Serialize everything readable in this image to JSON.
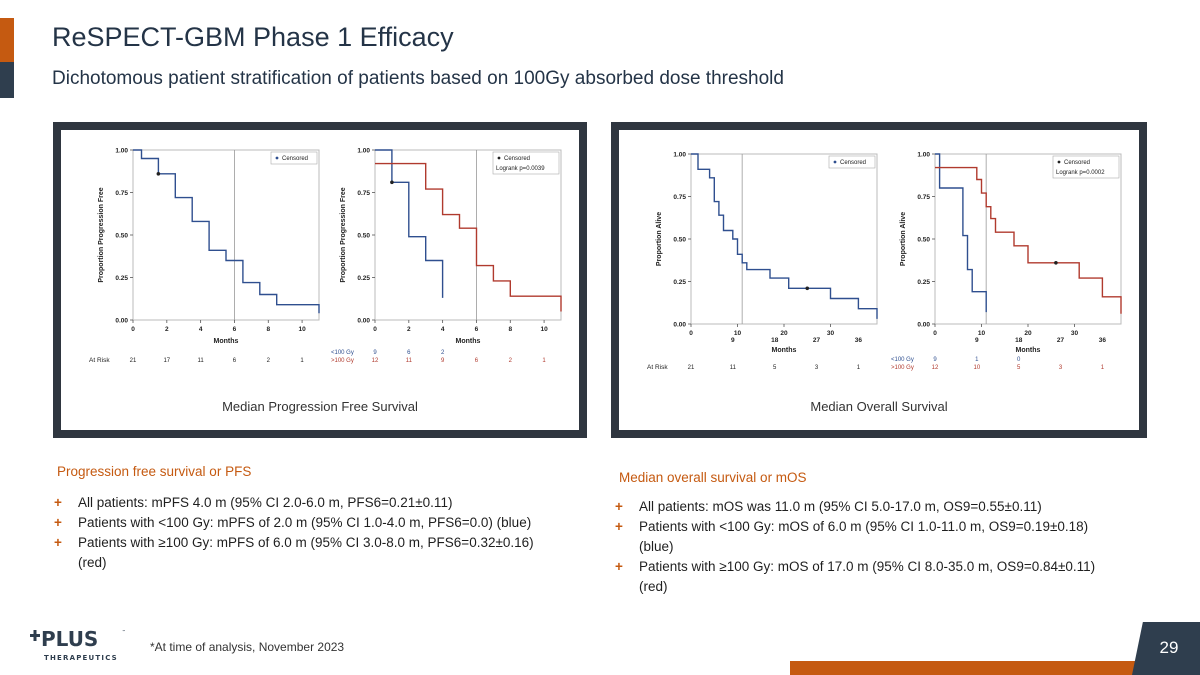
{
  "slide": {
    "title": "ReSPECT-GBM Phase 1 Efficacy",
    "subtitle": "Dichotomous patient stratification of patients based on 100Gy absorbed dose threshold",
    "footnote": "*At time of analysis, November 2023",
    "page_number": "29",
    "logo": {
      "text": "PLUS",
      "tagline": "THERAPEUTICS",
      "tm": "™"
    },
    "colors": {
      "accent": "#c55a11",
      "navy": "#2f3e4e",
      "blue_curve": "#2f4f8f",
      "red_curve": "#b03a2e"
    }
  },
  "pfs_section": {
    "heading": "Progression free survival or PFS",
    "bullets": [
      "All patients: mPFS 4.0 m (95% CI 2.0-6.0 m, PFS6=0.21±0.11)",
      "Patients with <100 Gy: mPFS of 2.0 m (95% CI 1.0-4.0 m, PFS6=0.0) (blue)",
      "Patients with ≥100 Gy: mPFS of 6.0 m (95% CI 3.0-8.0 m, PFS6=0.32±0.16)",
      "(red)"
    ]
  },
  "os_section": {
    "heading": "Median overall survival or mOS",
    "bullets": [
      "All patients: mOS was 11.0 m (95% CI 5.0-17.0 m, OS9=0.55±0.11)",
      "Patients with <100 Gy: mOS of 6.0 m (95% CI 1.0-11.0 m, OS9=0.19±0.18)",
      "(blue)",
      "Patients with ≥100 Gy: mOS of 17.0 m (95% CI 8.0-35.0 m, OS9=0.84±0.11)",
      "(red)"
    ]
  },
  "pfs_panel": {
    "caption": "Median Progression Free Survival"
  },
  "os_panel": {
    "caption": "Median Overall Survival"
  },
  "chart_data": [
    {
      "type": "line",
      "subtype": "kaplan-meier",
      "ylabel": "Proportion Progression Free",
      "xlabel": "Months",
      "xlim": [
        0,
        11
      ],
      "ylim": [
        0,
        1
      ],
      "xticks": [
        "0",
        "2",
        "4",
        "6",
        "8",
        "10"
      ],
      "xtick_values": [
        0,
        2,
        4,
        6,
        8,
        10
      ],
      "yticks": [
        "0.00",
        "0.25",
        "0.50",
        "0.75",
        "1.00"
      ],
      "legend": {
        "position": "top-right",
        "entries": [
          "Censored"
        ],
        "logrank": ""
      },
      "median_line_x": 6,
      "series": [
        {
          "color": "#2f4f8f",
          "points": [
            [
              0,
              1.0
            ],
            [
              0.5,
              1.0
            ],
            [
              0.5,
              0.95
            ],
            [
              1.5,
              0.95
            ],
            [
              1.5,
              0.86
            ],
            [
              2.5,
              0.86
            ],
            [
              2.5,
              0.72
            ],
            [
              3.5,
              0.72
            ],
            [
              3.5,
              0.58
            ],
            [
              4.5,
              0.58
            ],
            [
              4.5,
              0.41
            ],
            [
              5.5,
              0.41
            ],
            [
              5.5,
              0.35
            ],
            [
              6.5,
              0.35
            ],
            [
              6.5,
              0.22
            ],
            [
              7.5,
              0.22
            ],
            [
              7.5,
              0.15
            ],
            [
              8.5,
              0.15
            ],
            [
              8.5,
              0.09
            ],
            [
              11,
              0.09
            ],
            [
              11,
              0.04
            ]
          ],
          "censored": [
            [
              1.5,
              0.86
            ]
          ]
        }
      ],
      "at_risk": {
        "label": "At Risk",
        "rows": [
          {
            "values": [
              "21",
              "17",
              "11",
              "6",
              "2",
              "1"
            ]
          }
        ]
      }
    },
    {
      "type": "line",
      "subtype": "kaplan-meier",
      "ylabel": "Proportion Progression Free",
      "xlabel": "Months",
      "xlim": [
        0,
        11
      ],
      "ylim": [
        0,
        1
      ],
      "xticks": [
        "0",
        "2",
        "4",
        "6",
        "8",
        "10"
      ],
      "xtick_values": [
        0,
        2,
        4,
        6,
        8,
        10
      ],
      "yticks": [
        "0.00",
        "0.25",
        "0.50",
        "0.75",
        "1.00"
      ],
      "legend": {
        "position": "top-right",
        "entries": [
          "Censored"
        ],
        "logrank": "Logrank p=0.0039"
      },
      "median_line_x": 6,
      "series": [
        {
          "color": "#2f4f8f",
          "points": [
            [
              0,
              1.0
            ],
            [
              1,
              1.0
            ],
            [
              1,
              0.81
            ],
            [
              2,
              0.81
            ],
            [
              2,
              0.49
            ],
            [
              3,
              0.49
            ],
            [
              3,
              0.35
            ],
            [
              4,
              0.35
            ],
            [
              4,
              0.13
            ]
          ],
          "censored": [
            [
              1,
              0.81
            ]
          ]
        },
        {
          "color": "#b03a2e",
          "points": [
            [
              0,
              0.92
            ],
            [
              3,
              0.92
            ],
            [
              3,
              0.77
            ],
            [
              4,
              0.77
            ],
            [
              4,
              0.62
            ],
            [
              5,
              0.62
            ],
            [
              5,
              0.54
            ],
            [
              6,
              0.54
            ],
            [
              6,
              0.32
            ],
            [
              7,
              0.32
            ],
            [
              7,
              0.23
            ],
            [
              8,
              0.23
            ],
            [
              8,
              0.14
            ],
            [
              11,
              0.14
            ],
            [
              11,
              0.05
            ]
          ],
          "censored": []
        }
      ],
      "at_risk": {
        "label": "",
        "rows": [
          {
            "label": "<100 Gy",
            "values": [
              "9",
              "6",
              "2",
              "",
              "",
              ""
            ],
            "color": "#2f4f8f"
          },
          {
            "label": ">100 Gy",
            "values": [
              "12",
              "11",
              "9",
              "6",
              "2",
              "1"
            ],
            "color": "#b03a2e"
          }
        ]
      }
    },
    {
      "type": "line",
      "subtype": "kaplan-meier",
      "ylabel": "Proportion Alive",
      "xlabel": "Months",
      "xlim": [
        0,
        40
      ],
      "ylim": [
        0,
        1
      ],
      "xticks": [
        "0",
        "10",
        "20",
        "30"
      ],
      "xtick_values": [
        0,
        10,
        20,
        30
      ],
      "xticks2": [
        "9",
        "18",
        "27",
        "36"
      ],
      "xtick2_values": [
        9,
        18,
        27,
        36
      ],
      "yticks": [
        "0.00",
        "0.25",
        "0.50",
        "0.75",
        "1.00"
      ],
      "legend": {
        "position": "top-right",
        "entries": [
          "Censored"
        ],
        "logrank": ""
      },
      "median_line_x": 11,
      "series": [
        {
          "color": "#2f4f8f",
          "points": [
            [
              0,
              1.0
            ],
            [
              1.5,
              1.0
            ],
            [
              1.5,
              0.91
            ],
            [
              4,
              0.91
            ],
            [
              4,
              0.86
            ],
            [
              5,
              0.86
            ],
            [
              5,
              0.72
            ],
            [
              6,
              0.72
            ],
            [
              6,
              0.64
            ],
            [
              7,
              0.64
            ],
            [
              7,
              0.55
            ],
            [
              9,
              0.55
            ],
            [
              9,
              0.5
            ],
            [
              10,
              0.5
            ],
            [
              10,
              0.41
            ],
            [
              11,
              0.41
            ],
            [
              11,
              0.36
            ],
            [
              12,
              0.36
            ],
            [
              12,
              0.32
            ],
            [
              17,
              0.32
            ],
            [
              17,
              0.27
            ],
            [
              21,
              0.27
            ],
            [
              21,
              0.21
            ],
            [
              30,
              0.21
            ],
            [
              30,
              0.15
            ],
            [
              36,
              0.15
            ],
            [
              36,
              0.09
            ],
            [
              40,
              0.09
            ],
            [
              40,
              0.03
            ]
          ],
          "censored": [
            [
              25,
              0.21
            ]
          ]
        }
      ],
      "at_risk": {
        "label": "At Risk",
        "rows": [
          {
            "values": [
              "21",
              "11",
              "5",
              "3",
              "1"
            ]
          }
        ],
        "positions": [
          0,
          9,
          18,
          27,
          36
        ]
      }
    },
    {
      "type": "line",
      "subtype": "kaplan-meier",
      "ylabel": "Proportion Alive",
      "xlabel": "Months",
      "xlim": [
        0,
        40
      ],
      "ylim": [
        0,
        1
      ],
      "xticks": [
        "0",
        "10",
        "20",
        "30"
      ],
      "xtick_values": [
        0,
        10,
        20,
        30
      ],
      "xticks2": [
        "9",
        "18",
        "27",
        "36"
      ],
      "xtick2_values": [
        9,
        18,
        27,
        36
      ],
      "yticks": [
        "0.00",
        "0.25",
        "0.50",
        "0.75",
        "1.00"
      ],
      "legend": {
        "position": "top-right",
        "entries": [
          "Censored"
        ],
        "logrank": "Logrank p=0.0002"
      },
      "median_line_x": 11,
      "series": [
        {
          "color": "#2f4f8f",
          "points": [
            [
              0,
              1.0
            ],
            [
              1,
              1.0
            ],
            [
              1,
              0.8
            ],
            [
              6,
              0.8
            ],
            [
              6,
              0.52
            ],
            [
              7,
              0.52
            ],
            [
              7,
              0.32
            ],
            [
              8,
              0.32
            ],
            [
              8,
              0.19
            ],
            [
              11,
              0.19
            ],
            [
              11,
              0.07
            ]
          ],
          "censored": []
        },
        {
          "color": "#b03a2e",
          "points": [
            [
              0,
              0.92
            ],
            [
              5,
              0.92
            ],
            [
              5,
              0.92
            ],
            [
              9,
              0.92
            ],
            [
              9,
              0.85
            ],
            [
              10,
              0.85
            ],
            [
              10,
              0.77
            ],
            [
              11,
              0.77
            ],
            [
              11,
              0.69
            ],
            [
              12,
              0.69
            ],
            [
              12,
              0.62
            ],
            [
              13,
              0.62
            ],
            [
              13,
              0.54
            ],
            [
              17,
              0.54
            ],
            [
              17,
              0.46
            ],
            [
              20,
              0.46
            ],
            [
              20,
              0.36
            ],
            [
              31,
              0.36
            ],
            [
              31,
              0.27
            ],
            [
              36,
              0.27
            ],
            [
              36,
              0.16
            ],
            [
              40,
              0.16
            ],
            [
              40,
              0.06
            ]
          ],
          "censored": [
            [
              26,
              0.36
            ]
          ]
        }
      ],
      "at_risk": {
        "label": "",
        "positions": [
          0,
          9,
          18,
          27,
          36
        ],
        "rows": [
          {
            "label": "<100 Gy",
            "values": [
              "9",
              "1",
              "0",
              "",
              ""
            ],
            "color": "#2f4f8f"
          },
          {
            "label": ">100 Gy",
            "values": [
              "12",
              "10",
              "5",
              "3",
              "1"
            ],
            "color": "#b03a2e"
          }
        ]
      }
    }
  ]
}
